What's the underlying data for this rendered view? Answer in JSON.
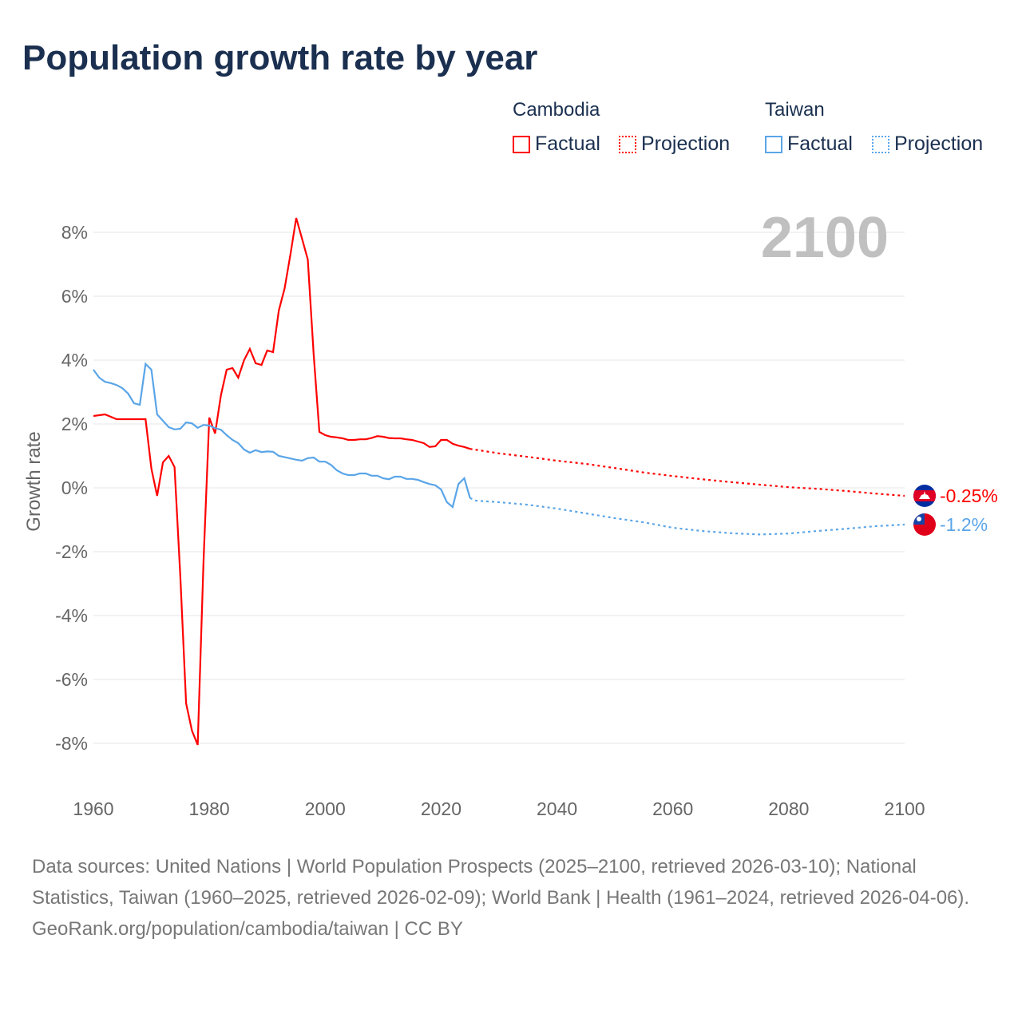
{
  "title": "Population growth rate by year",
  "legend": {
    "cambodia": {
      "name": "Cambodia",
      "factual": "Factual",
      "projection": "Projection",
      "color": "#ff0000"
    },
    "taiwan": {
      "name": "Taiwan",
      "factual": "Factual",
      "projection": "Projection",
      "color": "#5aa5e8"
    }
  },
  "year_label": "2100",
  "footer": {
    "sources": "Data sources: United Nations | World Population Prospects (2025–2100, retrieved 2026-03-10); National Statistics, Taiwan (1960–2025, retrieved 2026-02-09); World Bank | Health (1961–2024, retrieved 2026-04-06).",
    "credit": "GeoRank.org/population/cambodia/taiwan | CC BY"
  },
  "chart_data": {
    "type": "line",
    "title": "Population growth rate by year",
    "xlabel": "",
    "ylabel": "Growth rate",
    "xlim": [
      1960,
      2100
    ],
    "ylim": [
      -8,
      8
    ],
    "x_ticks": [
      "1960",
      "1980",
      "2000",
      "2020",
      "2040",
      "2060",
      "2080",
      "2100"
    ],
    "x_tick_values": [
      1960,
      1980,
      2000,
      2020,
      2040,
      2060,
      2080,
      2100
    ],
    "y_ticks": [
      "8%",
      "6%",
      "4%",
      "2%",
      "0%",
      "-2%",
      "-4%",
      "-6%",
      "-8%"
    ],
    "y_tick_values": [
      8,
      6,
      4,
      2,
      0,
      -2,
      -4,
      -6,
      -8
    ],
    "grid": true,
    "series": [
      {
        "name": "Cambodia",
        "color": "#ff0000",
        "end_label": "-0.25%",
        "factual": [
          [
            1960,
            2.25
          ],
          [
            1962,
            2.3
          ],
          [
            1964,
            2.15
          ],
          [
            1966,
            2.15
          ],
          [
            1968,
            2.15
          ],
          [
            1969,
            2.15
          ],
          [
            1970,
            0.6
          ],
          [
            1971,
            -0.25
          ],
          [
            1972,
            0.8
          ],
          [
            1973,
            1.0
          ],
          [
            1974,
            0.65
          ],
          [
            1975,
            -2.8
          ],
          [
            1976,
            -6.75
          ],
          [
            1977,
            -7.6
          ],
          [
            1978,
            -8.05
          ],
          [
            1979,
            -2.3
          ],
          [
            1980,
            2.2
          ],
          [
            1981,
            1.7
          ],
          [
            1982,
            2.9
          ],
          [
            1983,
            3.7
          ],
          [
            1984,
            3.75
          ],
          [
            1985,
            3.45
          ],
          [
            1986,
            4.0
          ],
          [
            1987,
            4.35
          ],
          [
            1988,
            3.9
          ],
          [
            1989,
            3.85
          ],
          [
            1990,
            4.3
          ],
          [
            1991,
            4.25
          ],
          [
            1992,
            5.55
          ],
          [
            1993,
            6.25
          ],
          [
            1994,
            7.3
          ],
          [
            1995,
            8.45
          ],
          [
            1996,
            7.8
          ],
          [
            1997,
            7.15
          ],
          [
            1998,
            4.2
          ],
          [
            1999,
            1.75
          ],
          [
            2000,
            1.65
          ],
          [
            2001,
            1.6
          ],
          [
            2002,
            1.58
          ],
          [
            2003,
            1.55
          ],
          [
            2004,
            1.5
          ],
          [
            2005,
            1.5
          ],
          [
            2006,
            1.52
          ],
          [
            2007,
            1.52
          ],
          [
            2008,
            1.56
          ],
          [
            2009,
            1.62
          ],
          [
            2010,
            1.6
          ],
          [
            2011,
            1.56
          ],
          [
            2012,
            1.55
          ],
          [
            2013,
            1.55
          ],
          [
            2014,
            1.52
          ],
          [
            2015,
            1.5
          ],
          [
            2016,
            1.45
          ],
          [
            2017,
            1.4
          ],
          [
            2018,
            1.28
          ],
          [
            2019,
            1.3
          ],
          [
            2020,
            1.5
          ],
          [
            2021,
            1.5
          ],
          [
            2022,
            1.38
          ],
          [
            2023,
            1.32
          ],
          [
            2024,
            1.28
          ],
          [
            2025,
            1.22
          ]
        ],
        "projection": [
          [
            2025,
            1.22
          ],
          [
            2030,
            1.08
          ],
          [
            2035,
            0.97
          ],
          [
            2040,
            0.85
          ],
          [
            2045,
            0.75
          ],
          [
            2050,
            0.62
          ],
          [
            2055,
            0.48
          ],
          [
            2060,
            0.37
          ],
          [
            2065,
            0.27
          ],
          [
            2070,
            0.18
          ],
          [
            2075,
            0.1
          ],
          [
            2080,
            0.02
          ],
          [
            2085,
            -0.03
          ],
          [
            2090,
            -0.1
          ],
          [
            2095,
            -0.18
          ],
          [
            2100,
            -0.25
          ]
        ]
      },
      {
        "name": "Taiwan",
        "color": "#5aa5e8",
        "end_label": "-1.2%",
        "factual": [
          [
            1960,
            3.7
          ],
          [
            1961,
            3.45
          ],
          [
            1962,
            3.32
          ],
          [
            1963,
            3.28
          ],
          [
            1964,
            3.22
          ],
          [
            1965,
            3.12
          ],
          [
            1966,
            2.95
          ],
          [
            1967,
            2.65
          ],
          [
            1968,
            2.6
          ],
          [
            1969,
            3.88
          ],
          [
            1970,
            3.7
          ],
          [
            1971,
            2.3
          ],
          [
            1972,
            2.1
          ],
          [
            1973,
            1.9
          ],
          [
            1974,
            1.83
          ],
          [
            1975,
            1.85
          ],
          [
            1976,
            2.05
          ],
          [
            1977,
            2.02
          ],
          [
            1978,
            1.88
          ],
          [
            1979,
            1.97
          ],
          [
            1980,
            1.95
          ],
          [
            1981,
            1.87
          ],
          [
            1982,
            1.82
          ],
          [
            1983,
            1.65
          ],
          [
            1984,
            1.5
          ],
          [
            1985,
            1.4
          ],
          [
            1986,
            1.2
          ],
          [
            1987,
            1.1
          ],
          [
            1988,
            1.18
          ],
          [
            1989,
            1.12
          ],
          [
            1990,
            1.14
          ],
          [
            1991,
            1.13
          ],
          [
            1992,
            1.0
          ],
          [
            1993,
            0.96
          ],
          [
            1994,
            0.92
          ],
          [
            1995,
            0.88
          ],
          [
            1996,
            0.85
          ],
          [
            1997,
            0.93
          ],
          [
            1998,
            0.95
          ],
          [
            1999,
            0.82
          ],
          [
            2000,
            0.82
          ],
          [
            2001,
            0.72
          ],
          [
            2002,
            0.55
          ],
          [
            2003,
            0.45
          ],
          [
            2004,
            0.4
          ],
          [
            2005,
            0.4
          ],
          [
            2006,
            0.45
          ],
          [
            2007,
            0.45
          ],
          [
            2008,
            0.38
          ],
          [
            2009,
            0.38
          ],
          [
            2010,
            0.3
          ],
          [
            2011,
            0.27
          ],
          [
            2012,
            0.35
          ],
          [
            2013,
            0.35
          ],
          [
            2014,
            0.28
          ],
          [
            2015,
            0.28
          ],
          [
            2016,
            0.25
          ],
          [
            2017,
            0.18
          ],
          [
            2018,
            0.12
          ],
          [
            2019,
            0.08
          ],
          [
            2020,
            -0.05
          ],
          [
            2021,
            -0.45
          ],
          [
            2022,
            -0.6
          ],
          [
            2023,
            0.12
          ],
          [
            2024,
            0.3
          ],
          [
            2025,
            -0.32
          ]
        ],
        "projection": [
          [
            2025,
            -0.32
          ],
          [
            2026,
            -0.4
          ],
          [
            2030,
            -0.45
          ],
          [
            2035,
            -0.53
          ],
          [
            2040,
            -0.65
          ],
          [
            2045,
            -0.8
          ],
          [
            2050,
            -0.95
          ],
          [
            2055,
            -1.08
          ],
          [
            2060,
            -1.25
          ],
          [
            2065,
            -1.35
          ],
          [
            2070,
            -1.42
          ],
          [
            2075,
            -1.46
          ],
          [
            2080,
            -1.43
          ],
          [
            2085,
            -1.35
          ],
          [
            2090,
            -1.28
          ],
          [
            2095,
            -1.2
          ],
          [
            2100,
            -1.15
          ]
        ]
      }
    ]
  }
}
